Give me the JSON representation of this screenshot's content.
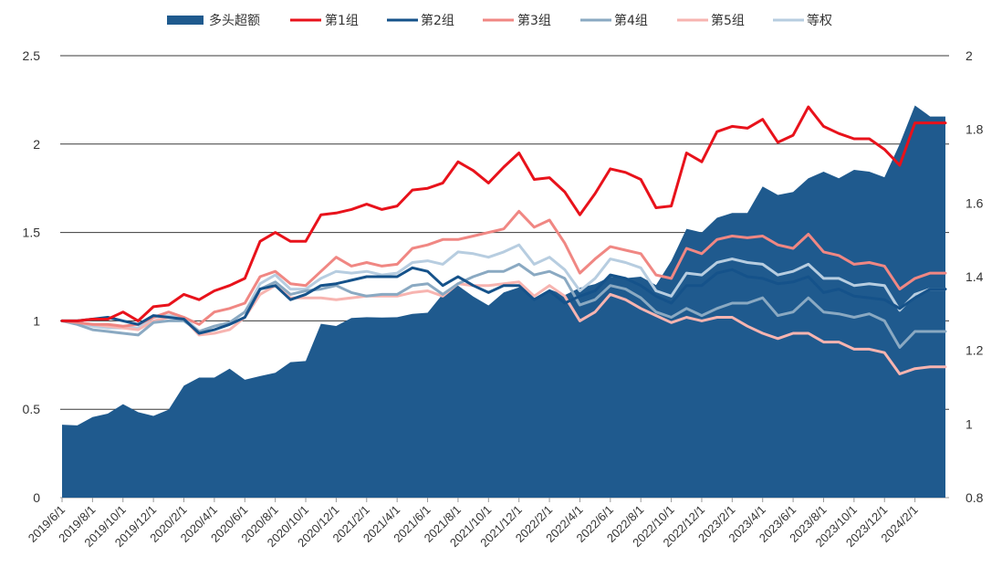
{
  "chart_data": {
    "type": "area+line",
    "title": "",
    "legend": [
      {
        "name": "多头超额",
        "kind": "area",
        "color": "#1f5a8e"
      },
      {
        "name": "第1组",
        "kind": "line",
        "color": "#e8121b"
      },
      {
        "name": "第2组",
        "kind": "line",
        "color": "#15528a"
      },
      {
        "name": "第3组",
        "kind": "line",
        "color": "#f08783"
      },
      {
        "name": "第4组",
        "kind": "line",
        "color": "#8aa9c2"
      },
      {
        "name": "第5组",
        "kind": "line",
        "color": "#f7b4b0"
      },
      {
        "name": "等权",
        "kind": "line",
        "color": "#b7cde0"
      }
    ],
    "left_axis": {
      "min": 0,
      "max": 2.5,
      "ticks": [
        "0",
        "0.5",
        "1",
        "1.5",
        "2",
        "2.5"
      ],
      "tick_values": [
        0,
        0.5,
        1,
        1.5,
        2,
        2.5
      ]
    },
    "right_axis": {
      "min": 0.8,
      "max": 2,
      "ticks": [
        "0.8",
        "1",
        "1.2",
        "1.4",
        "1.6",
        "1.8",
        "2"
      ],
      "tick_values": [
        0.8,
        1,
        1.2,
        1.4,
        1.6,
        1.8,
        2
      ]
    },
    "x_tick_labels": [
      "2019/6/1",
      "2019/8/1",
      "2019/10/1",
      "2019/12/1",
      "2020/2/1",
      "2020/4/1",
      "2020/6/1",
      "2020/8/1",
      "2020/10/1",
      "2020/12/1",
      "2021/2/1",
      "2021/4/1",
      "2021/6/1",
      "2021/8/1",
      "2021/10/1",
      "2021/12/1",
      "2022/2/1",
      "2022/4/1",
      "2022/6/1",
      "2022/8/1",
      "2022/10/1",
      "2022/12/1",
      "2023/2/1",
      "2023/4/1",
      "2023/6/1",
      "2023/8/1",
      "2023/10/1",
      "2023/12/1",
      "2024/2/1"
    ],
    "n_points": 59,
    "series": [
      {
        "name": "多头超额",
        "axis": "right",
        "values": [
          0.998,
          0.996,
          1.019,
          1.028,
          1.054,
          1.032,
          1.022,
          1.039,
          1.104,
          1.126,
          1.126,
          1.15,
          1.12,
          1.13,
          1.139,
          1.168,
          1.171,
          1.272,
          1.266,
          1.288,
          1.29,
          1.289,
          1.29,
          1.299,
          1.302,
          1.353,
          1.376,
          1.346,
          1.322,
          1.357,
          1.371,
          1.342,
          1.366,
          1.35,
          1.37,
          1.38,
          1.4,
          1.396,
          1.4,
          1.377,
          1.443,
          1.53,
          1.52,
          1.56,
          1.573,
          1.573,
          1.645,
          1.622,
          1.63,
          1.667,
          1.685,
          1.667,
          1.69,
          1.685,
          1.67,
          1.76,
          1.865,
          1.835,
          1.835
        ]
      },
      {
        "name": "第1组",
        "axis": "left",
        "values": [
          1.0,
          1.0,
          1.01,
          1.01,
          1.05,
          1.0,
          1.08,
          1.09,
          1.15,
          1.12,
          1.17,
          1.2,
          1.24,
          1.45,
          1.5,
          1.45,
          1.45,
          1.6,
          1.61,
          1.63,
          1.66,
          1.63,
          1.65,
          1.74,
          1.75,
          1.78,
          1.9,
          1.85,
          1.78,
          1.87,
          1.95,
          1.8,
          1.81,
          1.73,
          1.6,
          1.72,
          1.86,
          1.84,
          1.8,
          1.64,
          1.65,
          1.95,
          1.9,
          2.07,
          2.1,
          2.09,
          2.14,
          2.01,
          2.05,
          2.21,
          2.1,
          2.06,
          2.03,
          2.03,
          1.97,
          1.88,
          2.12,
          2.12,
          2.12
        ]
      },
      {
        "name": "第2组",
        "axis": "left",
        "values": [
          1.0,
          1.0,
          1.01,
          1.02,
          1.0,
          0.98,
          1.03,
          1.02,
          1.01,
          0.93,
          0.95,
          0.98,
          1.02,
          1.18,
          1.2,
          1.12,
          1.15,
          1.2,
          1.21,
          1.23,
          1.25,
          1.25,
          1.25,
          1.3,
          1.28,
          1.2,
          1.25,
          1.2,
          1.16,
          1.2,
          1.2,
          1.12,
          1.17,
          1.1,
          1.14,
          1.17,
          1.26,
          1.24,
          1.2,
          1.14,
          1.1,
          1.2,
          1.2,
          1.27,
          1.29,
          1.25,
          1.24,
          1.21,
          1.22,
          1.25,
          1.16,
          1.18,
          1.14,
          1.13,
          1.12,
          1.07,
          1.13,
          1.18,
          1.18
        ]
      },
      {
        "name": "第3组",
        "axis": "left",
        "values": [
          1.0,
          0.99,
          0.98,
          0.98,
          0.97,
          0.98,
          1.02,
          1.05,
          1.02,
          0.98,
          1.05,
          1.07,
          1.1,
          1.25,
          1.28,
          1.21,
          1.2,
          1.28,
          1.36,
          1.31,
          1.33,
          1.31,
          1.32,
          1.41,
          1.43,
          1.46,
          1.46,
          1.48,
          1.5,
          1.52,
          1.62,
          1.53,
          1.57,
          1.44,
          1.27,
          1.35,
          1.42,
          1.4,
          1.38,
          1.26,
          1.24,
          1.41,
          1.38,
          1.46,
          1.48,
          1.47,
          1.48,
          1.43,
          1.41,
          1.49,
          1.39,
          1.37,
          1.32,
          1.33,
          1.31,
          1.18,
          1.24,
          1.27,
          1.27
        ]
      },
      {
        "name": "第4组",
        "axis": "left",
        "values": [
          1.0,
          0.98,
          0.95,
          0.94,
          0.93,
          0.92,
          0.99,
          1.0,
          1.0,
          0.94,
          0.97,
          0.99,
          1.05,
          1.18,
          1.22,
          1.15,
          1.17,
          1.18,
          1.2,
          1.16,
          1.14,
          1.15,
          1.15,
          1.2,
          1.21,
          1.15,
          1.21,
          1.25,
          1.28,
          1.28,
          1.32,
          1.26,
          1.28,
          1.24,
          1.09,
          1.12,
          1.2,
          1.18,
          1.13,
          1.05,
          1.02,
          1.07,
          1.03,
          1.07,
          1.1,
          1.1,
          1.13,
          1.03,
          1.05,
          1.13,
          1.05,
          1.04,
          1.02,
          1.04,
          1.0,
          0.85,
          0.94,
          0.94,
          0.94
        ]
      },
      {
        "name": "第5组",
        "axis": "left",
        "values": [
          1.0,
          0.99,
          0.98,
          0.97,
          0.96,
          0.95,
          1.0,
          1.02,
          1.01,
          0.92,
          0.93,
          0.95,
          1.02,
          1.15,
          1.2,
          1.13,
          1.13,
          1.13,
          1.12,
          1.13,
          1.14,
          1.14,
          1.14,
          1.16,
          1.17,
          1.14,
          1.21,
          1.2,
          1.2,
          1.21,
          1.22,
          1.14,
          1.2,
          1.14,
          1.0,
          1.05,
          1.15,
          1.12,
          1.07,
          1.03,
          0.99,
          1.02,
          1.0,
          1.02,
          1.02,
          0.97,
          0.93,
          0.9,
          0.93,
          0.93,
          0.88,
          0.88,
          0.84,
          0.84,
          0.82,
          0.7,
          0.73,
          0.74,
          0.74
        ]
      },
      {
        "name": "等权",
        "axis": "left",
        "values": [
          1.0,
          0.99,
          0.97,
          0.96,
          0.96,
          0.96,
          1.02,
          1.03,
          1.02,
          0.94,
          0.97,
          0.99,
          1.05,
          1.21,
          1.26,
          1.18,
          1.18,
          1.24,
          1.28,
          1.27,
          1.28,
          1.26,
          1.27,
          1.33,
          1.34,
          1.32,
          1.39,
          1.38,
          1.36,
          1.39,
          1.43,
          1.32,
          1.36,
          1.29,
          1.17,
          1.24,
          1.35,
          1.33,
          1.3,
          1.17,
          1.14,
          1.27,
          1.26,
          1.33,
          1.35,
          1.33,
          1.32,
          1.26,
          1.28,
          1.32,
          1.24,
          1.24,
          1.2,
          1.21,
          1.2,
          1.06,
          1.15,
          1.18,
          1.18
        ]
      }
    ],
    "grid": "horizontal"
  }
}
